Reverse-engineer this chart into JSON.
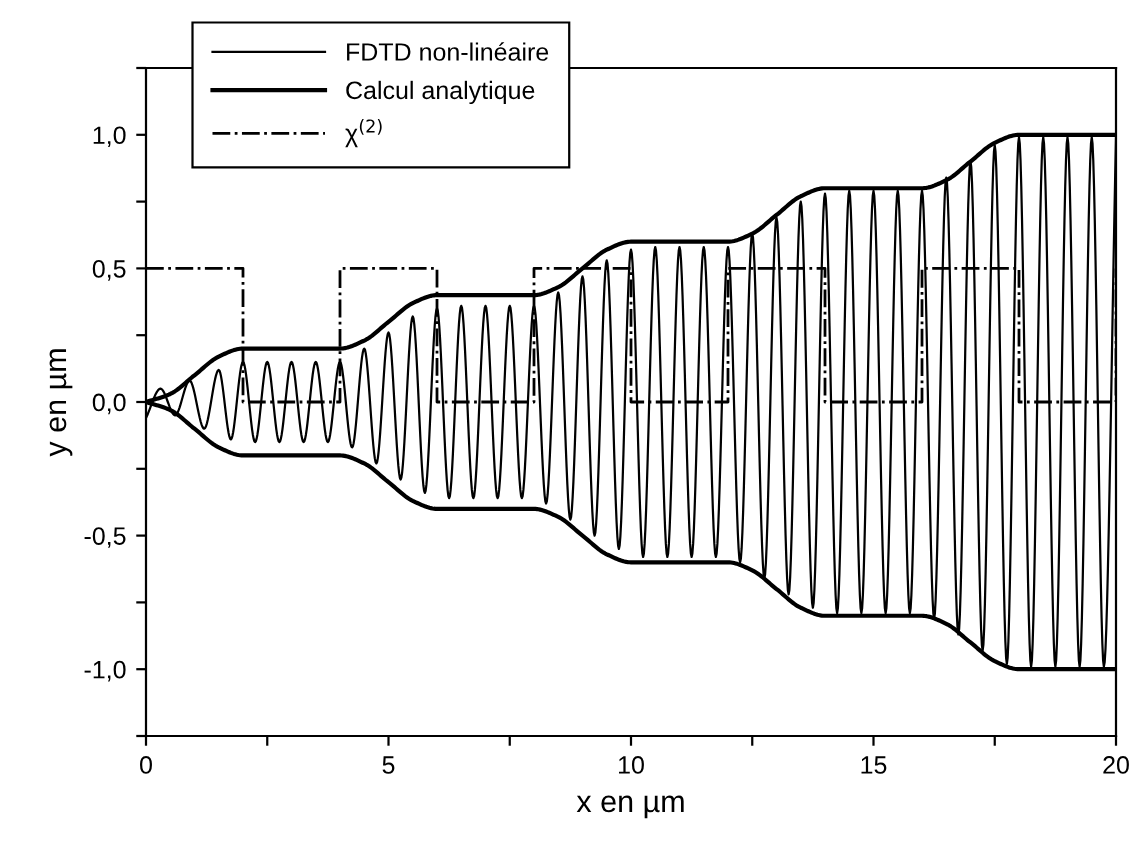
{
  "chart_data": {
    "type": "line",
    "xlabel": "x en µm",
    "ylabel": "y en µm",
    "xlim": [
      0,
      20
    ],
    "ylim": [
      -1.25,
      1.25
    ],
    "xticks": [
      0,
      {
        "value": 2.5,
        "label": null
      },
      5,
      {
        "value": 7.5,
        "label": null
      },
      10,
      {
        "value": 12.5,
        "label": null
      },
      15,
      {
        "value": 17.5,
        "label": null
      },
      20
    ],
    "yticks": [
      {
        "value": -1.25,
        "label": null
      },
      {
        "value": -1.0,
        "label": "-1,0"
      },
      {
        "value": -0.75,
        "label": null
      },
      {
        "value": -0.5,
        "label": "-0,5"
      },
      {
        "value": -0.25,
        "label": null
      },
      {
        "value": 0.0,
        "label": "0,0"
      },
      {
        "value": 0.25,
        "label": null
      },
      {
        "value": 0.5,
        "label": "0,5"
      },
      {
        "value": 0.75,
        "label": null
      },
      {
        "value": 1.0,
        "label": "1,0"
      },
      {
        "value": 1.25,
        "label": null
      }
    ],
    "grid": false,
    "legend": "top left",
    "marker": "none",
    "series": [
      {
        "name": "FDTD non-linéaire",
        "color": "#000000",
        "line_style": "solid",
        "x": [
          0,
          0.3,
          0.6,
          0.9,
          1.2,
          1.5,
          1.75,
          2.0,
          2.25,
          2.5,
          2.75,
          3.0,
          3.25,
          3.5,
          3.75,
          4.0,
          4.25,
          4.5,
          4.75,
          5.0,
          5.25,
          5.5,
          5.75,
          6.0,
          6.25,
          6.5,
          6.75,
          7.0,
          7.25,
          7.5,
          7.75,
          8.0,
          8.25,
          8.5,
          8.75,
          9.0,
          9.25,
          9.5,
          9.75,
          10.0,
          10.25,
          10.5,
          10.75,
          11.0,
          11.25,
          11.5,
          11.75,
          12.0,
          12.25,
          12.5,
          12.75,
          13.0,
          13.25,
          13.5,
          13.75,
          14.0,
          14.25,
          14.5,
          14.75,
          15.0,
          15.25,
          15.5,
          15.75,
          16.0,
          16.25,
          16.5,
          16.75,
          17.0,
          17.25,
          17.5,
          17.75,
          18.0,
          18.25,
          18.5,
          18.75,
          19.0,
          19.25,
          19.5,
          19.75,
          20.0
        ],
        "values": [
          -0.06,
          0.05,
          -0.05,
          0.08,
          -0.1,
          0.12,
          -0.14,
          0.15,
          -0.15,
          0.15,
          -0.15,
          0.15,
          -0.15,
          0.15,
          -0.15,
          0.15,
          -0.17,
          0.2,
          -0.23,
          0.26,
          -0.29,
          0.32,
          -0.34,
          0.35,
          -0.36,
          0.36,
          -0.36,
          0.36,
          -0.36,
          0.36,
          -0.36,
          0.36,
          -0.38,
          0.41,
          -0.44,
          0.47,
          -0.5,
          0.53,
          -0.55,
          0.57,
          -0.58,
          0.58,
          -0.58,
          0.58,
          -0.58,
          0.58,
          -0.58,
          0.58,
          -0.6,
          0.63,
          -0.66,
          0.69,
          -0.72,
          0.75,
          -0.77,
          0.78,
          -0.79,
          0.79,
          -0.79,
          0.79,
          -0.79,
          0.79,
          -0.79,
          0.79,
          -0.81,
          0.84,
          -0.87,
          0.9,
          -0.93,
          0.96,
          -0.98,
          0.99,
          -0.99,
          0.99,
          -0.99,
          0.99,
          -0.99,
          0.99,
          -0.99,
          0.99
        ]
      },
      {
        "name": "Calcul analytique",
        "color": "#000000",
        "line_style": "solid",
        "x": [
          0,
          0.5,
          1,
          1.5,
          2,
          4,
          4.5,
          5,
          5.5,
          6,
          8,
          8.5,
          9,
          9.5,
          10,
          12,
          12.5,
          13,
          13.5,
          14,
          16,
          16.5,
          17,
          17.5,
          18,
          20
        ],
        "values": [
          0,
          0.03,
          0.1,
          0.17,
          0.2,
          0.2,
          0.23,
          0.3,
          0.37,
          0.4,
          0.4,
          0.43,
          0.5,
          0.57,
          0.6,
          0.6,
          0.63,
          0.7,
          0.77,
          0.8,
          0.8,
          0.83,
          0.9,
          0.97,
          1.0,
          1.0
        ]
      },
      {
        "color": "#000000",
        "line_style": "solid",
        "x": [
          0,
          0.5,
          1,
          1.5,
          2,
          4,
          4.5,
          5,
          5.5,
          6,
          8,
          8.5,
          9,
          9.5,
          10,
          12,
          12.5,
          13,
          13.5,
          14,
          16,
          16.5,
          17,
          17.5,
          18,
          20
        ],
        "values": [
          0,
          -0.03,
          -0.1,
          -0.17,
          -0.2,
          -0.2,
          -0.23,
          -0.3,
          -0.37,
          -0.4,
          -0.4,
          -0.43,
          -0.5,
          -0.57,
          -0.6,
          -0.6,
          -0.63,
          -0.7,
          -0.77,
          -0.8,
          -0.8,
          -0.83,
          -0.9,
          -0.97,
          -1.0,
          -1.0
        ]
      },
      {
        "name": "χ$^{(2)}$",
        "type": "step",
        "color": "#000000",
        "line_style": "dashdot",
        "x": [
          0,
          2,
          4,
          6,
          8,
          10,
          12,
          14,
          16,
          18,
          20
        ],
        "values": [
          0.5,
          0,
          0.5,
          0,
          0.5,
          0,
          0.5,
          0,
          0.5,
          0,
          0.5
        ]
      }
    ]
  }
}
